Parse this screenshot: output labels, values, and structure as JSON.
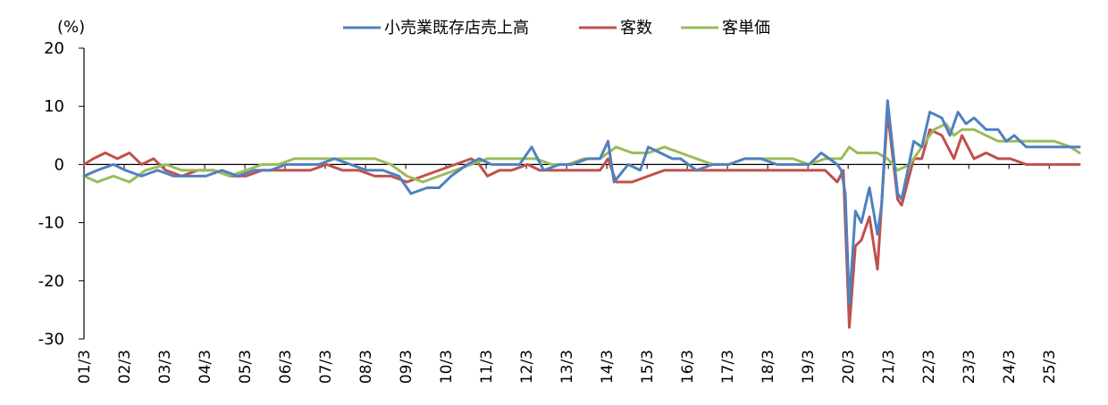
{
  "chart_data": {
    "type": "line",
    "ylabel": "(%)",
    "ylim": [
      -30,
      20
    ],
    "yticks": [
      20,
      10,
      0,
      -10,
      -20,
      -30
    ],
    "x_tick_labels": [
      "01/3",
      "02/3",
      "03/3",
      "04/3",
      "05/3",
      "06/3",
      "07/3",
      "08/3",
      "09/3",
      "10/3",
      "11/3",
      "12/3",
      "13/3",
      "14/3",
      "15/3",
      "16/3",
      "17/3",
      "18/3",
      "19/3",
      "20/3",
      "21/3",
      "22/3",
      "23/3",
      "24/3",
      "25/3"
    ],
    "x_start": 2001.17,
    "x_end": 2025.92,
    "legend_position": "top-center",
    "grid": false,
    "series": [
      {
        "name": "小売業既存店売上高",
        "color": "#4F81BD",
        "points": [
          [
            2001.17,
            -2
          ],
          [
            2001.5,
            -1
          ],
          [
            2001.9,
            0
          ],
          [
            2002.2,
            -1
          ],
          [
            2002.6,
            -2
          ],
          [
            2003.0,
            -1
          ],
          [
            2003.4,
            -2
          ],
          [
            2003.8,
            -2
          ],
          [
            2004.2,
            -2
          ],
          [
            2004.6,
            -1
          ],
          [
            2005.0,
            -2
          ],
          [
            2005.4,
            -1
          ],
          [
            2005.8,
            -1
          ],
          [
            2006.2,
            0
          ],
          [
            2006.6,
            0
          ],
          [
            2007.0,
            0
          ],
          [
            2007.4,
            1
          ],
          [
            2007.8,
            0
          ],
          [
            2008.2,
            -1
          ],
          [
            2008.6,
            -1
          ],
          [
            2009.0,
            -2
          ],
          [
            2009.3,
            -5
          ],
          [
            2009.7,
            -4
          ],
          [
            2010.0,
            -4
          ],
          [
            2010.3,
            -2
          ],
          [
            2010.7,
            0
          ],
          [
            2011.0,
            1
          ],
          [
            2011.3,
            0
          ],
          [
            2011.7,
            0
          ],
          [
            2012.0,
            0
          ],
          [
            2012.3,
            3
          ],
          [
            2012.6,
            -1
          ],
          [
            2013.0,
            0
          ],
          [
            2013.3,
            0
          ],
          [
            2013.7,
            1
          ],
          [
            2014.0,
            1
          ],
          [
            2014.2,
            4
          ],
          [
            2014.35,
            -3
          ],
          [
            2014.7,
            0
          ],
          [
            2015.0,
            -1
          ],
          [
            2015.2,
            3
          ],
          [
            2015.5,
            2
          ],
          [
            2015.8,
            1
          ],
          [
            2016.0,
            1
          ],
          [
            2016.4,
            -1
          ],
          [
            2016.8,
            0
          ],
          [
            2017.2,
            0
          ],
          [
            2017.6,
            1
          ],
          [
            2018.0,
            1
          ],
          [
            2018.4,
            0
          ],
          [
            2018.8,
            0
          ],
          [
            2019.2,
            0
          ],
          [
            2019.5,
            2
          ],
          [
            2019.9,
            0
          ],
          [
            2020.0,
            -1
          ],
          [
            2020.1,
            -5
          ],
          [
            2020.2,
            -24
          ],
          [
            2020.35,
            -8
          ],
          [
            2020.5,
            -10
          ],
          [
            2020.7,
            -4
          ],
          [
            2020.9,
            -12
          ],
          [
            2021.0,
            -7
          ],
          [
            2021.15,
            11
          ],
          [
            2021.4,
            -5
          ],
          [
            2021.5,
            -6
          ],
          [
            2021.8,
            4
          ],
          [
            2022.0,
            3
          ],
          [
            2022.2,
            9
          ],
          [
            2022.5,
            8
          ],
          [
            2022.7,
            5
          ],
          [
            2022.9,
            9
          ],
          [
            2023.1,
            7
          ],
          [
            2023.3,
            8
          ],
          [
            2023.6,
            6
          ],
          [
            2023.9,
            6
          ],
          [
            2024.1,
            4
          ],
          [
            2024.3,
            5
          ],
          [
            2024.6,
            3
          ],
          [
            2024.9,
            3
          ],
          [
            2025.2,
            3
          ],
          [
            2025.5,
            3
          ],
          [
            2025.92,
            3
          ]
        ]
      },
      {
        "name": "客数",
        "color": "#C0504D",
        "points": [
          [
            2001.17,
            0
          ],
          [
            2001.4,
            1
          ],
          [
            2001.7,
            2
          ],
          [
            2002.0,
            1
          ],
          [
            2002.3,
            2
          ],
          [
            2002.6,
            0
          ],
          [
            2002.9,
            1
          ],
          [
            2003.2,
            -1
          ],
          [
            2003.6,
            -2
          ],
          [
            2004.0,
            -1
          ],
          [
            2004.4,
            -1
          ],
          [
            2004.8,
            -2
          ],
          [
            2005.2,
            -2
          ],
          [
            2005.6,
            -1
          ],
          [
            2006.0,
            -1
          ],
          [
            2006.4,
            -1
          ],
          [
            2006.8,
            -1
          ],
          [
            2007.2,
            0
          ],
          [
            2007.6,
            -1
          ],
          [
            2008.0,
            -1
          ],
          [
            2008.4,
            -2
          ],
          [
            2008.8,
            -2
          ],
          [
            2009.2,
            -3
          ],
          [
            2009.6,
            -2
          ],
          [
            2010.0,
            -1
          ],
          [
            2010.4,
            0
          ],
          [
            2010.8,
            1
          ],
          [
            2011.0,
            0
          ],
          [
            2011.2,
            -2
          ],
          [
            2011.5,
            -1
          ],
          [
            2011.8,
            -1
          ],
          [
            2012.2,
            0
          ],
          [
            2012.5,
            -1
          ],
          [
            2012.8,
            -1
          ],
          [
            2013.2,
            -1
          ],
          [
            2013.6,
            -1
          ],
          [
            2014.0,
            -1
          ],
          [
            2014.2,
            1
          ],
          [
            2014.4,
            -3
          ],
          [
            2014.8,
            -3
          ],
          [
            2015.2,
            -2
          ],
          [
            2015.6,
            -1
          ],
          [
            2016.0,
            -1
          ],
          [
            2016.4,
            -1
          ],
          [
            2016.8,
            -1
          ],
          [
            2017.2,
            -1
          ],
          [
            2017.6,
            -1
          ],
          [
            2018.0,
            -1
          ],
          [
            2018.4,
            -1
          ],
          [
            2018.8,
            -1
          ],
          [
            2019.2,
            -1
          ],
          [
            2019.6,
            -1
          ],
          [
            2019.9,
            -3
          ],
          [
            2020.05,
            -1
          ],
          [
            2020.2,
            -28
          ],
          [
            2020.35,
            -14
          ],
          [
            2020.5,
            -13
          ],
          [
            2020.7,
            -9
          ],
          [
            2020.9,
            -18
          ],
          [
            2021.15,
            9
          ],
          [
            2021.4,
            -6
          ],
          [
            2021.5,
            -7
          ],
          [
            2021.8,
            1
          ],
          [
            2022.0,
            1
          ],
          [
            2022.2,
            6
          ],
          [
            2022.5,
            5
          ],
          [
            2022.8,
            1
          ],
          [
            2023.0,
            5
          ],
          [
            2023.3,
            1
          ],
          [
            2023.6,
            2
          ],
          [
            2023.9,
            1
          ],
          [
            2024.2,
            1
          ],
          [
            2024.6,
            0
          ],
          [
            2024.9,
            0
          ],
          [
            2025.2,
            0
          ],
          [
            2025.6,
            0
          ],
          [
            2025.92,
            0
          ]
        ]
      },
      {
        "name": "客単価",
        "color": "#9BBB59",
        "points": [
          [
            2001.17,
            -2
          ],
          [
            2001.5,
            -3
          ],
          [
            2001.9,
            -2
          ],
          [
            2002.3,
            -3
          ],
          [
            2002.7,
            -1
          ],
          [
            2003.2,
            0
          ],
          [
            2003.6,
            -1
          ],
          [
            2004.0,
            -1
          ],
          [
            2004.4,
            -1
          ],
          [
            2004.8,
            -2
          ],
          [
            2005.2,
            -1
          ],
          [
            2005.6,
            0
          ],
          [
            2006.0,
            0
          ],
          [
            2006.4,
            1
          ],
          [
            2006.8,
            1
          ],
          [
            2007.2,
            1
          ],
          [
            2007.6,
            1
          ],
          [
            2008.0,
            1
          ],
          [
            2008.4,
            1
          ],
          [
            2008.8,
            0
          ],
          [
            2009.2,
            -2
          ],
          [
            2009.6,
            -3
          ],
          [
            2010.0,
            -2
          ],
          [
            2010.4,
            -1
          ],
          [
            2010.8,
            0
          ],
          [
            2011.2,
            1
          ],
          [
            2011.6,
            1
          ],
          [
            2012.0,
            1
          ],
          [
            2012.4,
            1
          ],
          [
            2012.8,
            0
          ],
          [
            2013.2,
            0
          ],
          [
            2013.6,
            1
          ],
          [
            2014.0,
            1
          ],
          [
            2014.4,
            3
          ],
          [
            2014.8,
            2
          ],
          [
            2015.2,
            2
          ],
          [
            2015.6,
            3
          ],
          [
            2016.0,
            2
          ],
          [
            2016.4,
            1
          ],
          [
            2016.8,
            0
          ],
          [
            2017.2,
            0
          ],
          [
            2017.6,
            1
          ],
          [
            2018.0,
            1
          ],
          [
            2018.4,
            1
          ],
          [
            2018.8,
            1
          ],
          [
            2019.2,
            0
          ],
          [
            2019.6,
            1
          ],
          [
            2020.0,
            1
          ],
          [
            2020.2,
            3
          ],
          [
            2020.4,
            2
          ],
          [
            2020.6,
            2
          ],
          [
            2020.9,
            2
          ],
          [
            2021.15,
            1
          ],
          [
            2021.4,
            -1
          ],
          [
            2021.7,
            0
          ],
          [
            2022.0,
            3
          ],
          [
            2022.3,
            6
          ],
          [
            2022.6,
            7
          ],
          [
            2022.8,
            5
          ],
          [
            2023.0,
            6
          ],
          [
            2023.3,
            6
          ],
          [
            2023.6,
            5
          ],
          [
            2023.9,
            4
          ],
          [
            2024.2,
            4
          ],
          [
            2024.6,
            4
          ],
          [
            2024.9,
            4
          ],
          [
            2025.3,
            4
          ],
          [
            2025.7,
            3
          ],
          [
            2025.92,
            2
          ]
        ]
      }
    ]
  }
}
